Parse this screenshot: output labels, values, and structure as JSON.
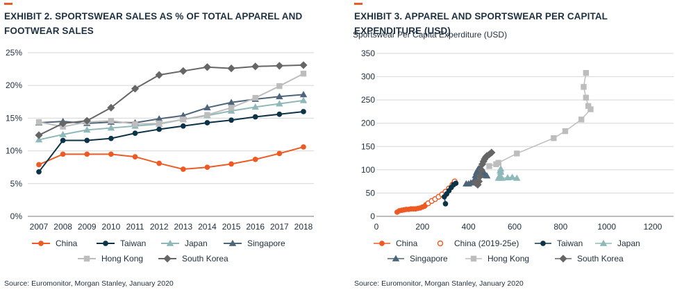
{
  "colors": {
    "accent": "#ee5a24",
    "grid": "#d6d6d6",
    "axis": "#7a7a7a",
    "text": "#1f2d3d"
  },
  "exhibit2": {
    "title_line1": "EXHIBIT 2. SPORTSWEAR SALES AS % OF TOTAL APPAREL AND",
    "title_line2": "FOOTWEAR SALES",
    "source": "Source: Euromonitor, Morgan Stanley, January 2020"
  },
  "exhibit3": {
    "title": "EXHIBIT 3. APPAREL AND SPORTSWEAR PER CAPITAL EXPENDITURE (USD)",
    "source": "Source: Euromonitor, Morgan Stanley, January 2020"
  },
  "chart_data": [
    {
      "type": "line",
      "title": "EXHIBIT 2. SPORTSWEAR SALES AS % OF TOTAL APPAREL AND FOOTWEAR SALES",
      "xlabel": "",
      "ylabel": "",
      "categories": [
        "2007",
        "2008",
        "2009",
        "2010",
        "2011",
        "2012",
        "2013",
        "2014",
        "2015",
        "2016",
        "2017",
        "2018"
      ],
      "ylim": [
        0,
        25
      ],
      "yticks": [
        "0%",
        "5%",
        "10%",
        "15%",
        "20%",
        "25%"
      ],
      "grid": true,
      "legend_position": "bottom",
      "series": [
        {
          "name": "China",
          "color": "#ee5a24",
          "marker": "circle",
          "values": [
            7.9,
            9.5,
            9.5,
            9.5,
            9.1,
            8.1,
            7.2,
            7.5,
            8.0,
            8.7,
            9.6,
            10.6
          ]
        },
        {
          "name": "Taiwan",
          "color": "#0d3349",
          "marker": "circle",
          "values": [
            6.8,
            11.6,
            11.6,
            11.9,
            12.7,
            13.3,
            13.8,
            14.3,
            14.7,
            15.2,
            15.6,
            16.0
          ]
        },
        {
          "name": "Japan",
          "color": "#8fb8b9",
          "marker": "triangle",
          "values": [
            11.7,
            12.5,
            13.2,
            13.5,
            13.8,
            14.1,
            14.8,
            15.4,
            16.1,
            16.7,
            17.2,
            17.7
          ]
        },
        {
          "name": "Singapore",
          "color": "#4d6479",
          "marker": "triangle",
          "values": [
            14.3,
            14.5,
            14.2,
            14.4,
            14.3,
            14.9,
            15.4,
            16.6,
            17.4,
            17.9,
            18.3,
            18.6
          ]
        },
        {
          "name": "Hong Kong",
          "color": "#bdbdbd",
          "marker": "square",
          "values": [
            14.4,
            13.7,
            14.4,
            14.6,
            14.1,
            14.2,
            14.8,
            15.5,
            16.6,
            18.1,
            19.9,
            21.8
          ]
        },
        {
          "name": "South Korea",
          "color": "#666666",
          "marker": "diamond",
          "values": [
            12.4,
            14.2,
            14.6,
            16.6,
            19.5,
            21.6,
            22.2,
            22.8,
            22.6,
            22.9,
            23.0,
            23.1
          ]
        }
      ]
    },
    {
      "type": "scatter",
      "title": "EXHIBIT 3. APPAREL AND SPORTSWEAR PER CAPITAL EXPENDITURE (USD)",
      "xlabel": "",
      "ylabel": "Sportswear Per Capita Experditure (USD)",
      "xlim": [
        0,
        1200
      ],
      "ylim": [
        0,
        350
      ],
      "xticks": [
        0,
        200,
        400,
        600,
        800,
        1000,
        1200
      ],
      "yticks": [
        0,
        50,
        100,
        150,
        200,
        250,
        300,
        350
      ],
      "grid": true,
      "legend_position": "bottom",
      "series": [
        {
          "name": "China",
          "color": "#ee5a24",
          "marker": "circle",
          "connected": true,
          "points": [
            [
              90,
              9
            ],
            [
              100,
              12
            ],
            [
              110,
              13
            ],
            [
              120,
              14
            ],
            [
              130,
              15
            ],
            [
              140,
              15
            ],
            [
              150,
              16
            ],
            [
              160,
              16
            ],
            [
              170,
              16
            ],
            [
              180,
              17
            ],
            [
              190,
              18
            ],
            [
              200,
              20
            ],
            [
              210,
              22
            ],
            [
              215,
              25
            ]
          ]
        },
        {
          "name": "China (2019-25e)",
          "color": "#ee5a24",
          "marker": "circle-open",
          "connected": false,
          "points": [
            [
              225,
              28
            ],
            [
              240,
              33
            ],
            [
              255,
              37
            ],
            [
              270,
              42
            ],
            [
              285,
              47
            ],
            [
              300,
              53
            ],
            [
              315,
              60
            ],
            [
              330,
              68
            ],
            [
              340,
              75
            ]
          ]
        },
        {
          "name": "Taiwan",
          "color": "#0d3349",
          "marker": "circle",
          "connected": true,
          "points": [
            [
              300,
              27
            ],
            [
              295,
              42
            ],
            [
              305,
              48
            ],
            [
              315,
              55
            ],
            [
              325,
              62
            ],
            [
              335,
              68
            ],
            [
              345,
              71
            ]
          ]
        },
        {
          "name": "Japan",
          "color": "#8fb8b9",
          "marker": "triangle",
          "connected": true,
          "points": [
            [
              530,
              82
            ],
            [
              535,
              87
            ],
            [
              540,
              95
            ],
            [
              540,
              102
            ],
            [
              538,
              98
            ],
            [
              540,
              85
            ],
            [
              545,
              82
            ],
            [
              570,
              83
            ],
            [
              590,
              84
            ],
            [
              610,
              82
            ]
          ]
        },
        {
          "name": "Singapore",
          "color": "#4d6479",
          "marker": "triangle",
          "connected": true,
          "points": [
            [
              390,
              70
            ],
            [
              400,
              70
            ],
            [
              410,
              72
            ],
            [
              420,
              74
            ],
            [
              425,
              78
            ],
            [
              430,
              82
            ],
            [
              430,
              88
            ],
            [
              435,
              95
            ],
            [
              440,
              100
            ],
            [
              445,
              103
            ],
            [
              450,
              102
            ],
            [
              455,
              99
            ],
            [
              460,
              97
            ],
            [
              465,
              95
            ],
            [
              470,
              92
            ],
            [
              475,
              88
            ],
            [
              480,
              87
            ]
          ]
        },
        {
          "name": "Hong Kong",
          "color": "#bdbdbd",
          "marker": "square",
          "connected": true,
          "points": [
            [
              490,
              108
            ],
            [
              520,
              112
            ],
            [
              530,
              115
            ],
            [
              610,
              135
            ],
            [
              770,
              168
            ],
            [
              820,
              183
            ],
            [
              890,
              208
            ],
            [
              930,
              230
            ],
            [
              920,
              237
            ],
            [
              910,
              255
            ],
            [
              900,
              278
            ],
            [
              910,
              308
            ]
          ]
        },
        {
          "name": "South Korea",
          "color": "#666666",
          "marker": "diamond",
          "connected": true,
          "points": [
            [
              430,
              72
            ],
            [
              440,
              68
            ],
            [
              445,
              75
            ],
            [
              450,
              86
            ],
            [
              455,
              100
            ],
            [
              460,
              112
            ],
            [
              465,
              118
            ],
            [
              470,
              123
            ],
            [
              475,
              127
            ],
            [
              480,
              130
            ],
            [
              490,
              133
            ],
            [
              500,
              137
            ]
          ]
        }
      ]
    }
  ]
}
